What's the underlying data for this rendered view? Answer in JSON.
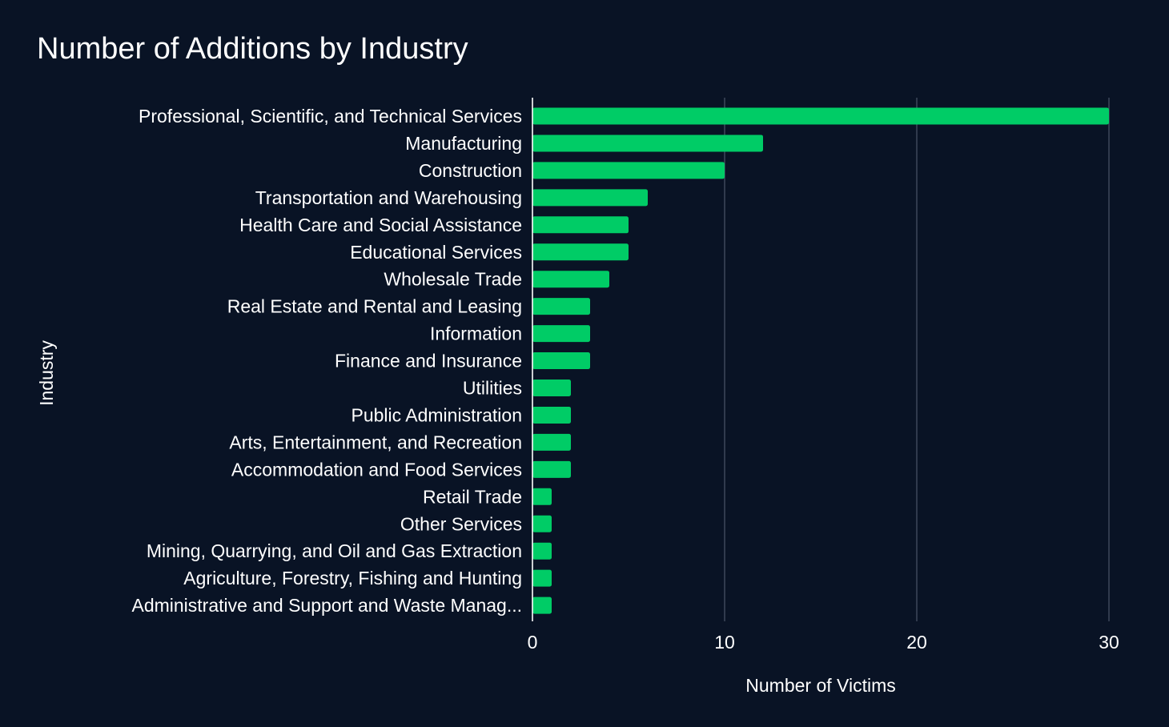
{
  "chart_data": {
    "type": "bar",
    "orientation": "horizontal",
    "title": "Number of Additions by Industry",
    "xlabel": "Number of Victims",
    "ylabel": "Industry",
    "xlim": [
      0,
      30
    ],
    "xticks": [
      "0",
      "10",
      "20",
      "30"
    ],
    "grid": true,
    "categories": [
      "Professional, Scientific, and Technical Services",
      "Manufacturing",
      "Construction",
      "Transportation and Warehousing",
      "Health Care and Social Assistance",
      "Educational Services",
      "Wholesale Trade",
      "Real Estate and Rental and Leasing",
      "Information",
      "Finance and Insurance",
      "Utilities",
      "Public Administration",
      "Arts, Entertainment, and Recreation",
      "Accommodation and Food Services",
      "Retail Trade",
      "Other Services",
      "Mining, Quarrying, and Oil and Gas Extraction",
      "Agriculture, Forestry, Fishing and Hunting",
      "Administrative and Support and Waste Manag..."
    ],
    "values": [
      30,
      12,
      10,
      6,
      5,
      5,
      4,
      3,
      3,
      3,
      2,
      2,
      2,
      2,
      1,
      1,
      1,
      1,
      1
    ],
    "colors": {
      "bar": "#00cc66",
      "background": "#091325",
      "grid": "#4a5568",
      "axis_line": "#ffffff",
      "text": "#ffffff"
    }
  }
}
